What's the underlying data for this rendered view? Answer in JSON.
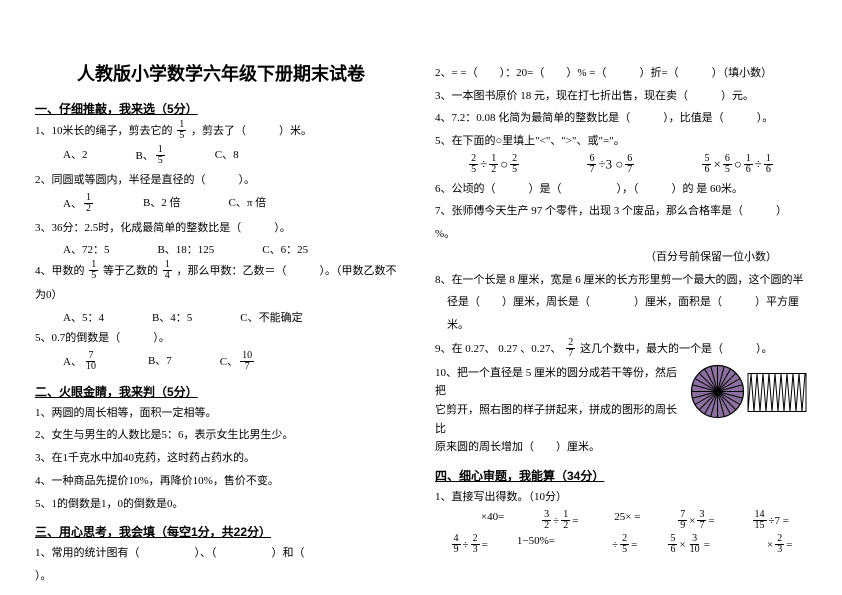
{
  "title": "人教版小学数学六年级下册期末试卷",
  "sections": {
    "s1": "一、仔细推敲，我来选（5分）",
    "s2": "二、火眼金睛，我来判（5分）",
    "s3": "三、用心思考，我会填（每空1分，共22分）",
    "s4": "四、细心审题，我能算（34分）"
  },
  "left": {
    "q1": "1、10米长的绳子，剪去它的",
    "q1b": "，剪去了（　　　）米。",
    "q1_opts": {
      "a": "A、2",
      "b": "B、",
      "c": "C、8"
    },
    "q2": "2、同圆或等圆内，半径是直径的（　　　）。",
    "q2_opts": {
      "a": "A、",
      "b": "B、2 倍",
      "c": "C、π 倍"
    },
    "q3": "3、36分：2.5时，化成最简单的整数比是（　　　）。",
    "q3_opts": {
      "a": "A、72：5",
      "b": "B、18：125",
      "c": "C、6：25"
    },
    "q4a": "4、甲数的",
    "q4b": "等于乙数的",
    "q4c": "，那么甲数：乙数＝（　　　）。（甲数乙数不",
    "q4d": "为0）",
    "q4_opts": {
      "a": "A、5：4",
      "b": "B、4：5",
      "c": "C、不能确定"
    },
    "q5": "5、0.7的倒数是（　　　）。",
    "q5_opts": {
      "a": "A、",
      "b": "B、7",
      "c": "C、"
    },
    "j1": "1、两圆的周长相等，面积一定相等。",
    "j2": "2、女生与男生的人数比是5：6，表示女生比男生少。",
    "j3": "3、在1千克水中加40克药，这时药占药水的。",
    "j4": "4、一种商品先提价10%，再降价10%，售价不变。",
    "j5": "5、1的倒数是1，0的倒数是0。",
    "f1": "1、常用的统计图有（　　　　　）、（　　　　　）和（　　　　　",
    "f1b": "）。"
  },
  "right": {
    "r2": "2、= =（　　）：20=（　　）%  =（　　　）折=（　　　）（填小数）",
    "r3": "3、一本图书原价 18 元，现在打七折出售，现在卖（　　　）元。",
    "r4": "4、7.2：0.08 化简为最简单的整数比是（　　　），比值是（　　　）。",
    "r5": "5、在下面的○里填上\"<\"、\">\"、或\"=\"。",
    "r6": "6、公顷的（　　　）是（　　　　　），（　　　）的 是 60米。",
    "r7": "7、张师傅今天生产 97 个零件，出现 3 个废品，那么合格率是（　　　）",
    "r7b": "%。",
    "r7c": "（百分号前保留一位小数）",
    "r8": "8、在一个长是 8 厘米，宽是 6 厘米的长方形里剪一个最大的圆，这个圆的半",
    "r8b": "径是（　　）厘米，周长是（　　　　）厘米，面积是（　　　）平方厘",
    "r8c": "米。",
    "r9a": "9、在 0.27、",
    "r9b": "、0.27、",
    "r9c": "这几个数中，最大的一个是（　　　）。",
    "r10": "10、把一个直径是 5 厘米的圆分成若干等份，然后把",
    "r10b": "它剪开，照右图的样子拼起来，拼成的图形的周长比",
    "r10c": "原来圆的周长增加（　　）厘米。",
    "c1": "1、直接写出得数。（10分）"
  },
  "calc": {
    "row1": {
      "a": "×40=",
      "b_pre": "÷",
      "b_post": "=",
      "c": "25× =",
      "d_a": "×",
      "d_b": "=",
      "e_a": "÷7 ="
    },
    "row2": {
      "a_a": "÷",
      "a_b": "=",
      "b": "1−50%=",
      "c_a": "÷",
      "c_b": "=",
      "d_a": "×",
      "d_b": "=",
      "e": "×",
      "e2": "="
    }
  },
  "styling": {
    "page_bg": "#ffffff",
    "text_color": "#000000",
    "title_fontsize": 18,
    "body_fontsize": 11,
    "section_fontsize": 12,
    "circle_fill": "#8b6f9e",
    "circle_stroke": "#000000",
    "zigzag_fill": "#ffffff",
    "zigzag_stroke": "#000000"
  }
}
